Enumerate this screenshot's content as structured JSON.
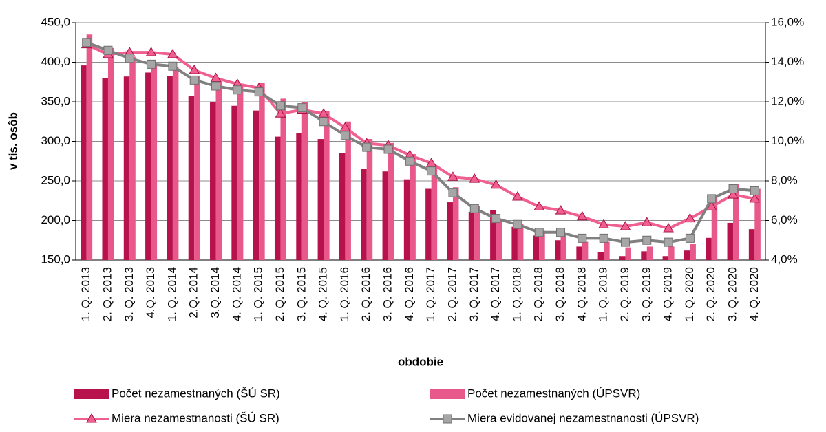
{
  "chart_data": {
    "type": "combo",
    "y_axis_label": "v tis. osôb",
    "x_axis_label": "obdobie",
    "categories": [
      "1. Q. 2013",
      "2. Q. 2013",
      "3. Q. 2013",
      "4.Q. 2013",
      "1. Q. 2014",
      "2.Q. 2014",
      "3.Q. 2014",
      "4. Q. 2014",
      "1. Q. 2015",
      "2. Q. 2015",
      "3. Q. 2015",
      "4. Q. 2015",
      "1. Q. 2016",
      "2. Q. 2016",
      "3. Q. 2016",
      "4. Q. 2016",
      "1. Q. 2017",
      "2. Q. 2017",
      "3. Q. 2017",
      "4. Q. 2017",
      "1. Q. 2018",
      "2. Q. 2018",
      "3. Q. 2018",
      "4. Q. 2018",
      "1. Q. 2019",
      "2. Q. 2019",
      "3. Q. 2019",
      "4. Q. 2019",
      "1. Q. 2020",
      "2. Q. 2020",
      "3. Q. 2020",
      "4. Q. 2020"
    ],
    "series": [
      {
        "name": "Počet nezamestnaných (ŠÚ SR)",
        "type": "bar",
        "color": "#b8124c",
        "values": [
          396,
          380,
          382,
          387,
          383,
          357,
          350,
          345,
          339,
          306,
          310,
          303,
          285,
          265,
          262,
          252,
          240,
          223,
          211,
          213,
          192,
          181,
          175,
          167,
          160,
          155,
          161,
          155,
          162,
          178,
          197,
          189
        ]
      },
      {
        "name": "Počet nezamestnaných (ÚPSVR)",
        "type": "bar",
        "color": "#e8588a",
        "values": [
          435,
          418,
          407,
          398,
          394,
          383,
          376,
          372,
          374,
          354,
          350,
          338,
          325,
          303,
          298,
          284,
          267,
          242,
          218,
          202,
          196,
          187,
          183,
          173,
          173,
          166,
          167,
          167,
          170,
          229,
          246,
          240
        ]
      },
      {
        "name": "Miera nezamestnanosti (ŠÚ SR)",
        "type": "line",
        "axis": "y2",
        "marker": "triangle",
        "color": "#ef5f91",
        "values": [
          14.9,
          14.4,
          14.5,
          14.5,
          14.4,
          13.6,
          13.2,
          12.9,
          12.7,
          11.4,
          11.6,
          11.4,
          10.7,
          9.9,
          9.8,
          9.3,
          8.9,
          8.2,
          8.1,
          7.8,
          7.2,
          6.7,
          6.5,
          6.2,
          5.8,
          5.7,
          5.9,
          5.6,
          6.1,
          6.7,
          7.3,
          7.1
        ]
      },
      {
        "name": "Miera evidovanej nezamestnanosti (ÚPSVR)",
        "type": "line",
        "axis": "y2",
        "marker": "square",
        "color": "#808080",
        "values": [
          15.0,
          14.6,
          14.2,
          13.9,
          13.8,
          13.1,
          12.8,
          12.6,
          12.5,
          11.8,
          11.7,
          11.0,
          10.3,
          9.7,
          9.6,
          9.0,
          8.5,
          7.4,
          6.6,
          6.1,
          5.8,
          5.4,
          5.4,
          5.1,
          5.1,
          4.9,
          5.0,
          4.9,
          5.1,
          7.1,
          7.6,
          7.5
        ]
      }
    ],
    "ylim": [
      150,
      450
    ],
    "yticks": [
      {
        "value": 150,
        "label": "150,0"
      },
      {
        "value": 200,
        "label": "200,0"
      },
      {
        "value": 250,
        "label": "250,0"
      },
      {
        "value": 300,
        "label": "300,0"
      },
      {
        "value": 350,
        "label": "350,0"
      },
      {
        "value": 400,
        "label": "400,0"
      },
      {
        "value": 450,
        "label": "450,0"
      }
    ],
    "y2lim": [
      4,
      16
    ],
    "y2ticks": [
      {
        "value": 4,
        "label": "4,0%"
      },
      {
        "value": 6,
        "label": "6,0%"
      },
      {
        "value": 8,
        "label": "8,0%"
      },
      {
        "value": 10,
        "label": "10,0%"
      },
      {
        "value": 12,
        "label": "12,0%"
      },
      {
        "value": 14,
        "label": "14,0%"
      },
      {
        "value": 16,
        "label": "16,0%"
      }
    ],
    "grid": true
  }
}
